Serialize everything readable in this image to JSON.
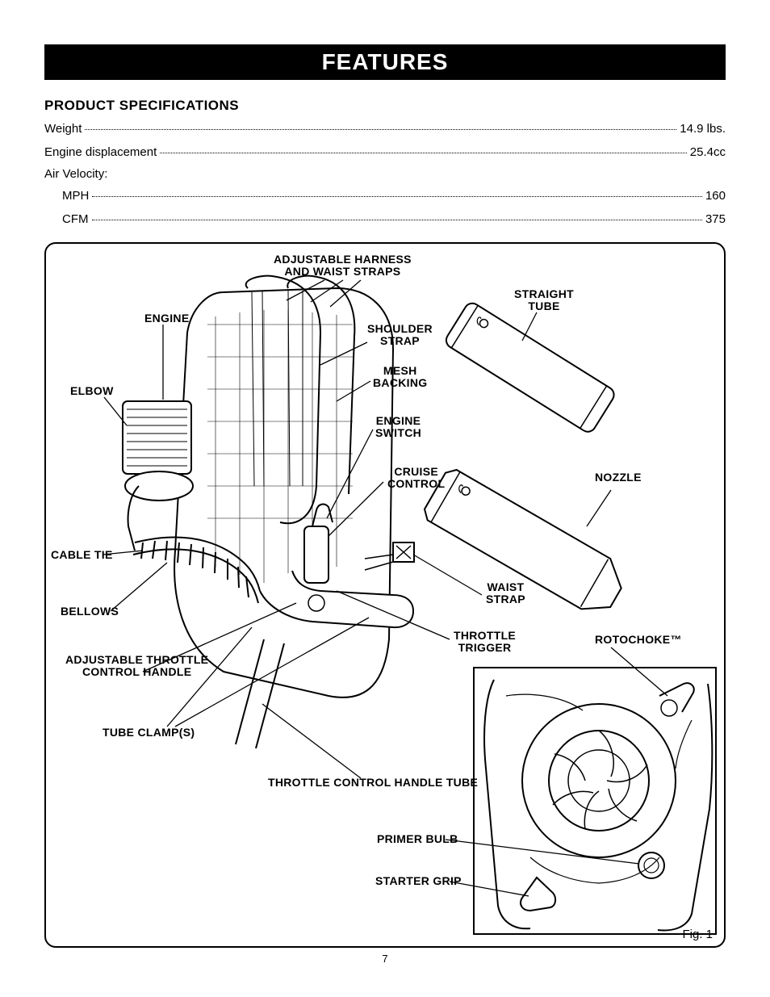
{
  "title_bar": "FEATURES",
  "section_heading": "PRODUCT SPECIFICATIONS",
  "specs": {
    "weight": {
      "label": "Weight",
      "value": "14.9 lbs."
    },
    "engine_disp": {
      "label": "Engine displacement",
      "value": "25.4cc"
    },
    "air_velocity_label": "Air Velocity:",
    "mph": {
      "label": "MPH",
      "value": "160"
    },
    "cfm": {
      "label": "CFM",
      "value": "375"
    }
  },
  "callouts": {
    "harness": "ADJUSTABLE HARNESS\nAND WAIST STRAPS",
    "straight_tube": "STRAIGHT\nTUBE",
    "engine": "ENGINE",
    "shoulder_strap": "SHOULDER\nSTRAP",
    "mesh_backing": "MESH\nBACKING",
    "elbow": "ELBOW",
    "engine_switch": "ENGINE\nSWITCH",
    "cruise_control": "CRUISE\nCONTROL",
    "nozzle": "NOZZLE",
    "cable_tie": "CABLE TIE",
    "waist_strap": "WAIST\nSTRAP",
    "bellows": "BELLOWS",
    "throttle_trigger": "THROTTLE\nTRIGGER",
    "rotochoke": "ROTOCHOKE™",
    "adj_throttle": "ADJUSTABLE THROTTLE\nCONTROL HANDLE",
    "tube_clamps": "TUBE CLAMP(S)",
    "throttle_tube": "THROTTLE CONTROL HANDLE TUBE",
    "primer_bulb": "PRIMER BULB",
    "starter_grip": "STARTER GRIP"
  },
  "figure_label": "Fig. 1",
  "page_number": "7"
}
